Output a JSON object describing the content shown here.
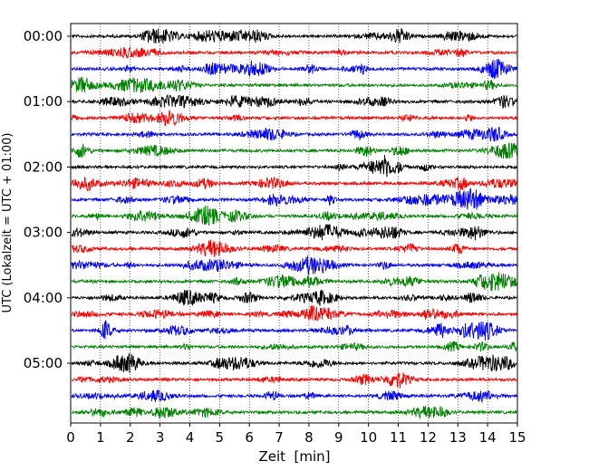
{
  "chart_data": {
    "type": "line",
    "title": "",
    "xlabel": "Zeit  [min]",
    "ylabel": "UTC (Lokalzeit = UTC + 01:00)",
    "xlim": [
      0,
      15
    ],
    "x_ticks": [
      "0",
      "1",
      "2",
      "3",
      "4",
      "5",
      "6",
      "7",
      "8",
      "9",
      "10",
      "11",
      "12",
      "13",
      "14",
      "15"
    ],
    "y_ticks": [
      "00:00",
      "01:00",
      "02:00",
      "03:00",
      "04:00",
      "05:00"
    ],
    "grid": "vertical dotted lines at each minute",
    "trace_interval_minutes": 15,
    "trace_count": 24,
    "color_cycle": [
      "#000000",
      "#ff0000",
      "#0000ff",
      "#008000"
    ],
    "series": [
      {
        "start": "00:00",
        "color": "#000000"
      },
      {
        "start": "00:15",
        "color": "#ff0000"
      },
      {
        "start": "00:30",
        "color": "#0000ff"
      },
      {
        "start": "00:45",
        "color": "#008000"
      },
      {
        "start": "01:00",
        "color": "#000000"
      },
      {
        "start": "01:15",
        "color": "#ff0000"
      },
      {
        "start": "01:30",
        "color": "#0000ff"
      },
      {
        "start": "01:45",
        "color": "#008000"
      },
      {
        "start": "02:00",
        "color": "#000000"
      },
      {
        "start": "02:15",
        "color": "#ff0000"
      },
      {
        "start": "02:30",
        "color": "#0000ff"
      },
      {
        "start": "02:45",
        "color": "#008000"
      },
      {
        "start": "03:00",
        "color": "#000000"
      },
      {
        "start": "03:15",
        "color": "#ff0000"
      },
      {
        "start": "03:30",
        "color": "#0000ff"
      },
      {
        "start": "03:45",
        "color": "#008000"
      },
      {
        "start": "04:00",
        "color": "#000000"
      },
      {
        "start": "04:15",
        "color": "#ff0000"
      },
      {
        "start": "04:30",
        "color": "#0000ff"
      },
      {
        "start": "04:45",
        "color": "#008000"
      },
      {
        "start": "05:00",
        "color": "#000000"
      },
      {
        "start": "05:15",
        "color": "#ff0000"
      },
      {
        "start": "05:30",
        "color": "#0000ff"
      },
      {
        "start": "05:45",
        "color": "#008000"
      }
    ]
  }
}
